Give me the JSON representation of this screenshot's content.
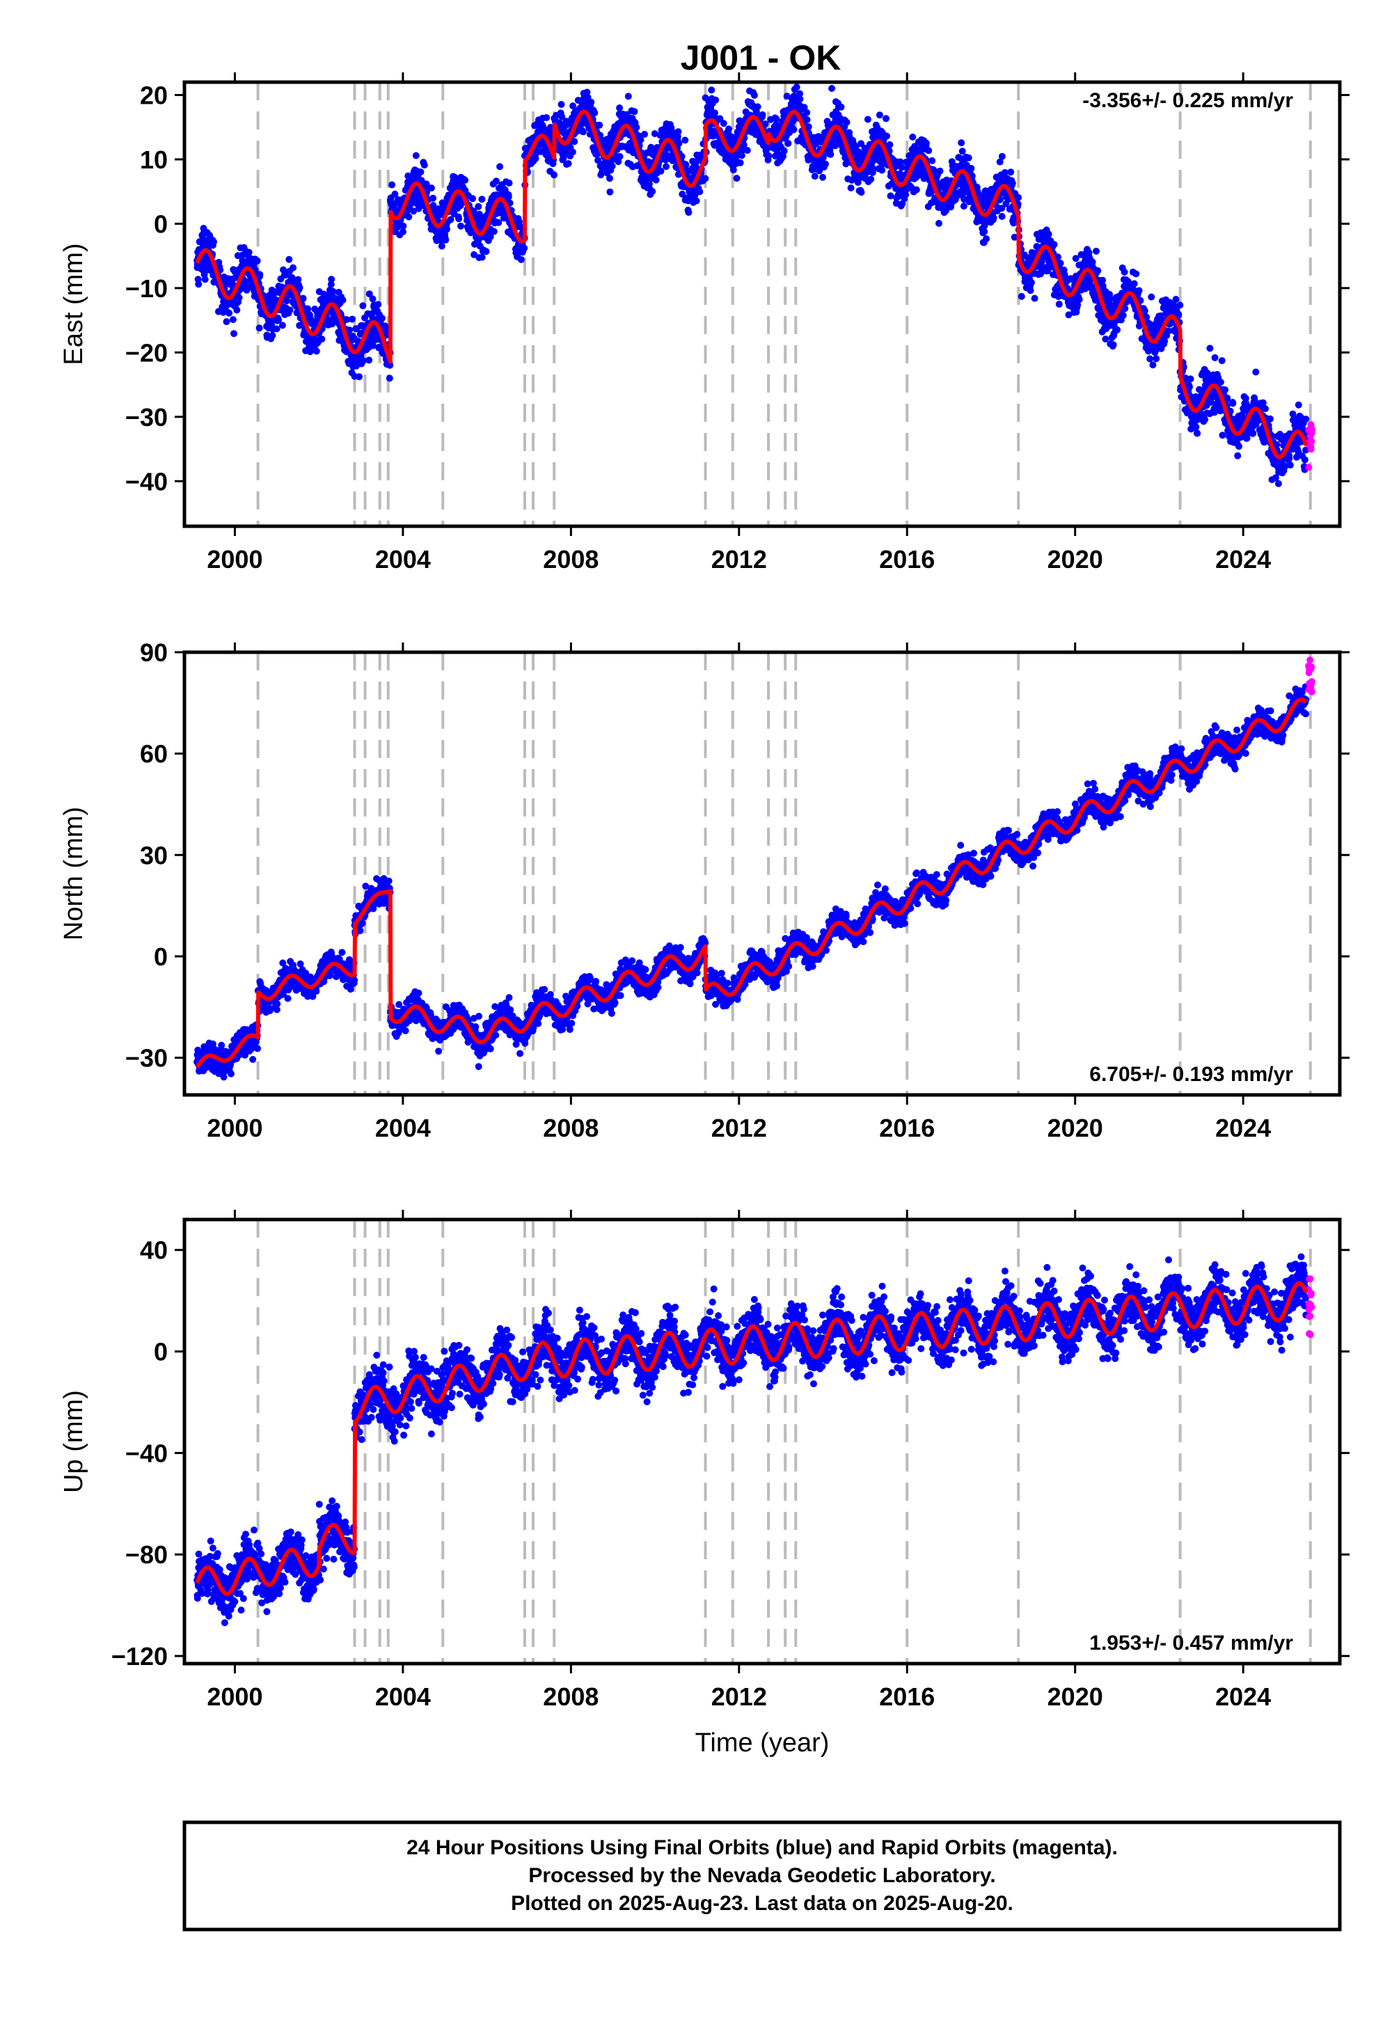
{
  "title": "J001 - OK",
  "footer": {
    "line1": "24 Hour Positions Using Final Orbits (blue) and Rapid Orbits (magenta).",
    "line2": "Processed by the Nevada Geodetic Laboratory.",
    "line3": "Plotted on 2025-Aug-23. Last data on 2025-Aug-20."
  },
  "colors": {
    "final_orbits": "#0000ff",
    "rapid_orbits": "#ff00ff",
    "model_fit": "#ff0000",
    "event_lines": "#bbbbbb"
  },
  "chart_data": [
    {
      "type": "scatter",
      "component": "East",
      "ylabel": "East (mm)",
      "xlabel": "",
      "rate": "-3.356+/- 0.225 mm/yr",
      "rate_position": "top-right",
      "xlim": [
        1998.8,
        2026.3
      ],
      "ylim": [
        -47,
        22
      ],
      "yticks": [
        20,
        10,
        0,
        -10,
        -20,
        -30,
        -40
      ],
      "ytick_labels": [
        "20",
        "10",
        "0",
        "−10",
        "−20",
        "−30",
        "−40"
      ],
      "xticks": [
        2000,
        2004,
        2008,
        2012,
        2016,
        2020,
        2024
      ],
      "xtick_labels": [
        "2000",
        "2004",
        "2008",
        "2012",
        "2016",
        "2020",
        "2024"
      ],
      "grid": false,
      "event_lines": [
        2000.55,
        2002.85,
        2003.1,
        2003.45,
        2003.65,
        2004.95,
        2006.9,
        2007.1,
        2007.6,
        2011.2,
        2011.85,
        2012.7,
        2013.1,
        2013.35,
        2016.0,
        2018.65,
        2022.5,
        2025.6
      ],
      "segments": [
        {
          "start": 1999.1,
          "end": 2003.7,
          "offset": -6.5,
          "slope": -2.8,
          "amp": 3.0
        },
        {
          "start": 2003.7,
          "end": 2006.9,
          "offset": 4.0,
          "slope": -1.2,
          "amp": 3.0
        },
        {
          "start": 2006.9,
          "end": 2007.6,
          "offset": 12.0,
          "slope": -2.0,
          "amp": 2.5
        },
        {
          "start": 2007.6,
          "end": 2011.2,
          "offset": 16.0,
          "slope": -2.2,
          "amp": 3.0
        },
        {
          "start": 2011.2,
          "end": 2012.7,
          "offset": 13.5,
          "slope": 0.5,
          "amp": 2.5
        },
        {
          "start": 2012.7,
          "end": 2018.65,
          "offset": 16.0,
          "slope": -2.3,
          "amp": 2.8
        },
        {
          "start": 2018.65,
          "end": 2022.5,
          "offset": -4.0,
          "slope": -3.6,
          "amp": 2.8
        },
        {
          "start": 2022.5,
          "end": 2025.5,
          "offset": -25.0,
          "slope": -3.6,
          "amp": 2.8
        }
      ],
      "scatter_sd": 1.8,
      "rapid": {
        "start": 2025.55,
        "end": 2025.64,
        "center": -35,
        "spread": 4
      }
    },
    {
      "type": "scatter",
      "component": "North",
      "ylabel": "North (mm)",
      "xlabel": "",
      "rate": "6.705+/- 0.193 mm/yr",
      "rate_position": "bottom-right",
      "xlim": [
        1998.8,
        2026.3
      ],
      "ylim": [
        -41,
        90
      ],
      "yticks": [
        90,
        60,
        30,
        0,
        -30
      ],
      "ytick_labels": [
        "90",
        "60",
        "30",
        "0",
        "−30"
      ],
      "xticks": [
        2000,
        2004,
        2008,
        2012,
        2016,
        2020,
        2024
      ],
      "xtick_labels": [
        "2000",
        "2004",
        "2008",
        "2012",
        "2016",
        "2020",
        "2024"
      ],
      "grid": false,
      "event_lines": [
        2000.55,
        2002.85,
        2003.1,
        2003.45,
        2003.65,
        2004.95,
        2006.9,
        2007.1,
        2007.6,
        2011.2,
        2011.85,
        2012.7,
        2013.1,
        2013.35,
        2016.0,
        2018.65,
        2022.5,
        2025.6
      ],
      "segments": [
        {
          "start": 1999.1,
          "end": 2000.55,
          "offset": -33.0,
          "slope": 6.0,
          "amp": 2.0
        },
        {
          "start": 2000.55,
          "end": 2002.85,
          "offset": -11.0,
          "slope": 3.5,
          "amp": 2.5
        },
        {
          "start": 2002.85,
          "end": 2003.7,
          "offset": 11.0,
          "slope": 11.0,
          "amp": 1.5
        },
        {
          "start": 2003.7,
          "end": 2006.0,
          "offset": -16.0,
          "slope": -3.0,
          "amp": 3.0
        },
        {
          "start": 2006.0,
          "end": 2011.2,
          "offset": -23.0,
          "slope": 4.6,
          "amp": 3.0
        },
        {
          "start": 2011.2,
          "end": 2025.5,
          "offset": -12.0,
          "slope": 6.0,
          "amp": 3.0
        }
      ],
      "scatter_sd": 2.0,
      "rapid": {
        "start": 2025.55,
        "end": 2025.64,
        "center": 83,
        "spread": 5
      }
    },
    {
      "type": "scatter",
      "component": "Up",
      "ylabel": "Up (mm)",
      "xlabel": "Time (year)",
      "rate": "1.953+/- 0.457 mm/yr",
      "rate_position": "bottom-right",
      "xlim": [
        1998.8,
        2026.3
      ],
      "ylim": [
        -123,
        52
      ],
      "yticks": [
        40,
        0,
        -40,
        -80,
        -120
      ],
      "ytick_labels": [
        "40",
        "0",
        "−40",
        "−80",
        "−120"
      ],
      "xticks": [
        2000,
        2004,
        2008,
        2012,
        2016,
        2020,
        2024
      ],
      "xtick_labels": [
        "2000",
        "2004",
        "2008",
        "2012",
        "2016",
        "2020",
        "2024"
      ],
      "grid": false,
      "event_lines": [
        2000.55,
        2002.85,
        2003.1,
        2003.45,
        2003.65,
        2004.95,
        2006.9,
        2007.1,
        2007.6,
        2011.2,
        2011.85,
        2012.7,
        2013.1,
        2013.35,
        2016.0,
        2018.65,
        2022.5,
        2025.6
      ],
      "segments": [
        {
          "start": 1999.1,
          "end": 2002.0,
          "offset": -92.0,
          "slope": 3.5,
          "amp": 6.0
        },
        {
          "start": 2002.0,
          "end": 2002.85,
          "offset": -75.0,
          "slope": 2.0,
          "amp": 6.0
        },
        {
          "start": 2002.85,
          "end": 2007.0,
          "offset": -22.0,
          "slope": 4.2,
          "amp": 6.0
        },
        {
          "start": 2007.0,
          "end": 2025.5,
          "offset": -4.0,
          "slope": 1.3,
          "amp": 7.0
        }
      ],
      "scatter_sd": 5.0,
      "rapid": {
        "start": 2025.55,
        "end": 2025.64,
        "center": 18,
        "spread": 12
      }
    }
  ]
}
